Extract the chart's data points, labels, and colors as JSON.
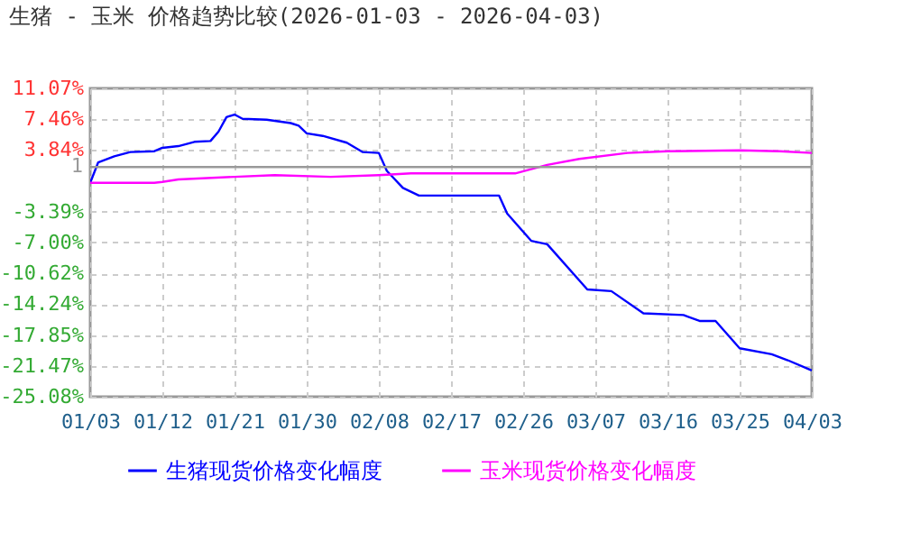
{
  "chart_data": {
    "type": "line",
    "title": "生猪 - 玉米 价格趋势比较(2026-01-03 - 2026-04-03)",
    "x": [
      "2026-01-03",
      "2026-01-04",
      "2026-01-06",
      "2026-01-08",
      "2026-01-11",
      "2026-01-12",
      "2026-01-14",
      "2026-01-16",
      "2026-01-18",
      "2026-01-19",
      "2026-01-20",
      "2026-01-21",
      "2026-01-22",
      "2026-01-25",
      "2026-01-28",
      "2026-01-29",
      "2026-01-30",
      "2026-02-01",
      "2026-02-04",
      "2026-02-06",
      "2026-02-08",
      "2026-02-09",
      "2026-02-11",
      "2026-02-13",
      "2026-02-23",
      "2026-02-24",
      "2026-02-27",
      "2026-03-01",
      "2026-03-06",
      "2026-03-09",
      "2026-03-13",
      "2026-03-18",
      "2026-03-20",
      "2026-03-22",
      "2026-03-25",
      "2026-03-29",
      "2026-03-31",
      "2026-04-03"
    ],
    "series": [
      {
        "name": "生猪现货价格变化幅度",
        "color": "#0000ff",
        "values": [
          0,
          2.4,
          3.1,
          3.6,
          3.7,
          4.1,
          4.3,
          4.8,
          4.9,
          6.0,
          7.7,
          8.0,
          7.5,
          7.4,
          7.0,
          6.7,
          5.8,
          5.5,
          4.7,
          3.6,
          3.5,
          1.4,
          -0.6,
          -1.5,
          -1.5,
          -3.6,
          -6.8,
          -7.2,
          -12.5,
          -12.7,
          -15.3,
          -15.5,
          -16.2,
          -16.2,
          -19.4,
          -20.1,
          -20.8,
          -22.0
        ]
      },
      {
        "name": "玉米现货价格变化幅度",
        "color": "#ff00ff",
        "x": [
          "2026-01-03",
          "2026-01-11",
          "2026-01-12",
          "2026-01-14",
          "2026-01-21",
          "2026-01-26",
          "2026-02-02",
          "2026-02-08",
          "2026-02-12",
          "2026-02-25",
          "2026-03-01",
          "2026-03-05",
          "2026-03-11",
          "2026-03-16",
          "2026-03-25",
          "2026-03-30",
          "2026-04-03"
        ],
        "values": [
          0,
          0,
          0.1,
          0.4,
          0.7,
          0.9,
          0.7,
          0.9,
          1.1,
          1.1,
          2.1,
          2.8,
          3.5,
          3.7,
          3.8,
          3.7,
          3.5
        ]
      }
    ],
    "xlim": [
      "2026-01-03",
      "2026-04-03"
    ],
    "xticks": [
      {
        "value": "2026-01-03",
        "label": "01/03"
      },
      {
        "value": "2026-01-12",
        "label": "01/12"
      },
      {
        "value": "2026-01-21",
        "label": "01/21"
      },
      {
        "value": "2026-01-30",
        "label": "01/30"
      },
      {
        "value": "2026-02-08",
        "label": "02/08"
      },
      {
        "value": "2026-02-17",
        "label": "02/17"
      },
      {
        "value": "2026-02-26",
        "label": "02/26"
      },
      {
        "value": "2026-03-07",
        "label": "03/07"
      },
      {
        "value": "2026-03-16",
        "label": "03/16"
      },
      {
        "value": "2026-03-25",
        "label": "03/25"
      },
      {
        "value": "2026-04-03",
        "label": "04/03"
      }
    ],
    "ylim": [
      -25.08,
      11.07
    ],
    "yticks": [
      {
        "value": 11.07,
        "label": "11.07%"
      },
      {
        "value": 7.46,
        "label": "7.46%"
      },
      {
        "value": 3.84,
        "label": "3.84%"
      },
      {
        "value": -3.39,
        "label": "-3.39%"
      },
      {
        "value": -7.0,
        "label": "-7.00%"
      },
      {
        "value": -10.62,
        "label": "-10.62%"
      },
      {
        "value": -14.24,
        "label": "-14.24%"
      },
      {
        "value": -17.85,
        "label": "-17.85%"
      },
      {
        "value": -21.47,
        "label": "-21.47%"
      },
      {
        "value": -25.08,
        "label": "-25.08%"
      }
    ],
    "ref_lines": [
      {
        "axis": "y",
        "value": 1.85,
        "color": "#999999"
      }
    ],
    "annotations": [
      "1"
    ],
    "grid": true,
    "legend": "bottom",
    "line_style": "solid",
    "marker": "none"
  }
}
